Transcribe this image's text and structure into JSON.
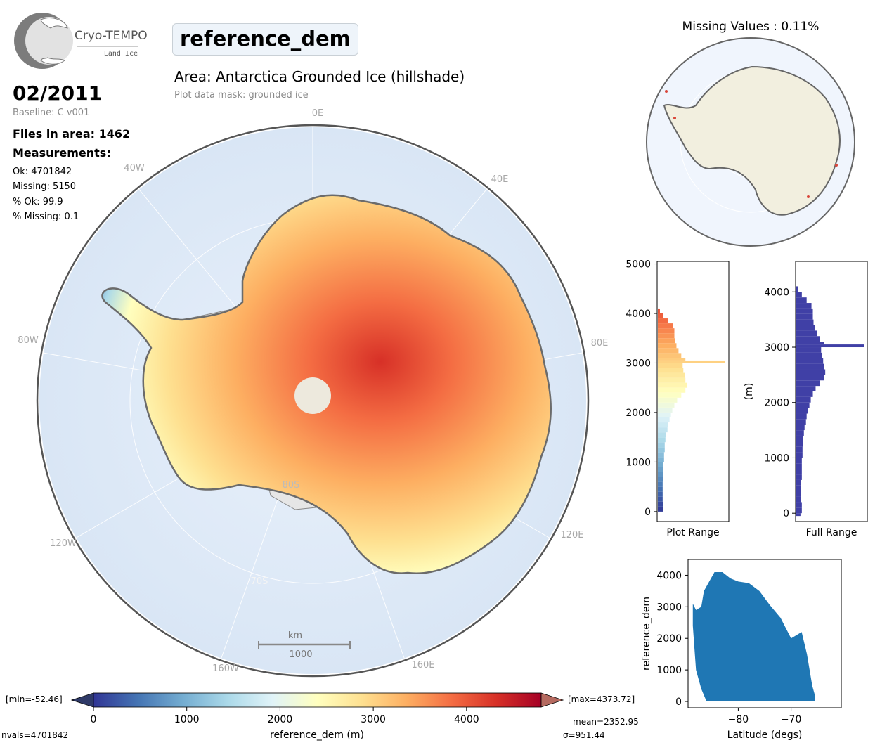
{
  "header": {
    "logo_name": "Cryo-TEMPO",
    "logo_sub": "Land Ice",
    "variable": "reference_dem",
    "area_title": "Area: Antarctica Grounded Ice (hillshade)",
    "mask_note": "Plot data mask: grounded ice"
  },
  "summary": {
    "date": "02/2011",
    "baseline": "Baseline: C v001",
    "files": "Files in area: 1462",
    "measurements_label": "Measurements:",
    "ok": "Ok: 4701842",
    "missing": "Missing: 5150",
    "pct_ok": "% Ok: 99.9",
    "pct_missing": "% Missing: 0.1"
  },
  "map": {
    "lon_labels": [
      "0E",
      "40E",
      "80E",
      "120E",
      "160E",
      "160W",
      "120W",
      "80W",
      "40W"
    ],
    "lat_labels": [
      "80S",
      "70S"
    ],
    "scale_unit": "km",
    "scale_value": "1000"
  },
  "missing_map": {
    "title": "Missing Values : 0.11%"
  },
  "colorbar": {
    "min_label": "[min=-52.46]",
    "max_label": "[max=4373.72]",
    "ticks": [
      "0",
      "1000",
      "2000",
      "3000",
      "4000"
    ],
    "label": "reference_dem (m)",
    "mean": "mean=2352.95",
    "sigma": "σ=951.44",
    "nvals": "nvals=4701842",
    "colors": [
      "#313695",
      "#4575b4",
      "#74add1",
      "#abd9e9",
      "#e0f3f8",
      "#ffffbf",
      "#fee090",
      "#fdae61",
      "#f46d43",
      "#d73027",
      "#a50026"
    ],
    "under_color": "#2f3a68",
    "over_color": "#b56a60"
  },
  "chart_data": [
    {
      "type": "bar",
      "title": "",
      "xlabel": "Plot Range",
      "ylabel": "",
      "orientation": "horizontal",
      "ylim": [
        -200,
        5050
      ],
      "yticks": [
        "0",
        "1000",
        "2000",
        "3000",
        "4000",
        "5000"
      ],
      "bins": [
        [
          0,
          100,
          0.08
        ],
        [
          100,
          200,
          0.08
        ],
        [
          200,
          300,
          0.07
        ],
        [
          300,
          400,
          0.07
        ],
        [
          400,
          500,
          0.07
        ],
        [
          500,
          600,
          0.07
        ],
        [
          600,
          700,
          0.08
        ],
        [
          700,
          800,
          0.08
        ],
        [
          800,
          900,
          0.08
        ],
        [
          900,
          1000,
          0.08
        ],
        [
          1000,
          1100,
          0.09
        ],
        [
          1100,
          1200,
          0.09
        ],
        [
          1200,
          1300,
          0.1
        ],
        [
          1300,
          1400,
          0.1
        ],
        [
          1400,
          1500,
          0.11
        ],
        [
          1500,
          1600,
          0.12
        ],
        [
          1600,
          1700,
          0.14
        ],
        [
          1700,
          1800,
          0.15
        ],
        [
          1800,
          1900,
          0.17
        ],
        [
          1900,
          2000,
          0.19
        ],
        [
          2000,
          2100,
          0.21
        ],
        [
          2100,
          2200,
          0.24
        ],
        [
          2200,
          2300,
          0.28
        ],
        [
          2300,
          2400,
          0.34
        ],
        [
          2400,
          2500,
          0.4
        ],
        [
          2500,
          2600,
          0.42
        ],
        [
          2600,
          2700,
          0.4
        ],
        [
          2700,
          2800,
          0.39
        ],
        [
          2800,
          2900,
          0.37
        ],
        [
          2900,
          3000,
          0.36
        ],
        [
          3000,
          3050,
          0.98
        ],
        [
          3050,
          3100,
          0.4
        ],
        [
          3100,
          3200,
          0.34
        ],
        [
          3200,
          3300,
          0.3
        ],
        [
          3300,
          3400,
          0.27
        ],
        [
          3400,
          3500,
          0.25
        ],
        [
          3500,
          3600,
          0.24
        ],
        [
          3600,
          3700,
          0.24
        ],
        [
          3700,
          3800,
          0.22
        ],
        [
          3800,
          3900,
          0.15
        ],
        [
          3900,
          4000,
          0.08
        ],
        [
          4000,
          4100,
          0.03
        ]
      ]
    },
    {
      "type": "bar",
      "title": "",
      "xlabel": "Full Range",
      "ylabel": "(m)",
      "orientation": "horizontal",
      "ylim": [
        -150,
        4550
      ],
      "yticks": [
        "0",
        "1000",
        "2000",
        "3000",
        "4000"
      ],
      "color": "#4040a6",
      "bins": [
        [
          -50,
          0,
          0.06
        ],
        [
          0,
          100,
          0.08
        ],
        [
          100,
          200,
          0.08
        ],
        [
          200,
          300,
          0.07
        ],
        [
          300,
          400,
          0.07
        ],
        [
          400,
          500,
          0.07
        ],
        [
          500,
          600,
          0.07
        ],
        [
          600,
          700,
          0.08
        ],
        [
          700,
          800,
          0.08
        ],
        [
          800,
          900,
          0.08
        ],
        [
          900,
          1000,
          0.08
        ],
        [
          1000,
          1100,
          0.09
        ],
        [
          1100,
          1200,
          0.09
        ],
        [
          1200,
          1300,
          0.1
        ],
        [
          1300,
          1400,
          0.1
        ],
        [
          1400,
          1500,
          0.11
        ],
        [
          1500,
          1600,
          0.12
        ],
        [
          1600,
          1700,
          0.14
        ],
        [
          1700,
          1800,
          0.15
        ],
        [
          1800,
          1900,
          0.17
        ],
        [
          1900,
          2000,
          0.19
        ],
        [
          2000,
          2100,
          0.21
        ],
        [
          2100,
          2200,
          0.24
        ],
        [
          2200,
          2300,
          0.28
        ],
        [
          2300,
          2400,
          0.34
        ],
        [
          2400,
          2500,
          0.4
        ],
        [
          2500,
          2600,
          0.42
        ],
        [
          2600,
          2700,
          0.4
        ],
        [
          2700,
          2800,
          0.39
        ],
        [
          2800,
          2900,
          0.37
        ],
        [
          2900,
          3000,
          0.36
        ],
        [
          3000,
          3050,
          0.98
        ],
        [
          3050,
          3100,
          0.4
        ],
        [
          3100,
          3200,
          0.34
        ],
        [
          3200,
          3300,
          0.3
        ],
        [
          3300,
          3400,
          0.27
        ],
        [
          3400,
          3500,
          0.25
        ],
        [
          3500,
          3600,
          0.24
        ],
        [
          3600,
          3700,
          0.24
        ],
        [
          3700,
          3800,
          0.22
        ],
        [
          3800,
          3900,
          0.15
        ],
        [
          3900,
          4000,
          0.08
        ],
        [
          4000,
          4100,
          0.03
        ]
      ]
    },
    {
      "type": "scatter",
      "title": "",
      "xlabel": "Latitude (degs)",
      "ylabel": "reference_dem",
      "xlim": [
        -89.5,
        -60.5
      ],
      "ylim": [
        -200,
        4500
      ],
      "xticks": [
        "−80",
        "−70"
      ],
      "yticks": [
        "0",
        "1000",
        "2000",
        "3000",
        "4000"
      ],
      "color": "#1f77b4",
      "upper_envelope": [
        [
          -88.6,
          3100
        ],
        [
          -88,
          2900
        ],
        [
          -87,
          3000
        ],
        [
          -86.5,
          3500
        ],
        [
          -85.5,
          3800
        ],
        [
          -84.5,
          4100
        ],
        [
          -83,
          4100
        ],
        [
          -81.5,
          3900
        ],
        [
          -80,
          3800
        ],
        [
          -78,
          3750
        ],
        [
          -76,
          3500
        ],
        [
          -74,
          3050
        ],
        [
          -72,
          2650
        ],
        [
          -70,
          2000
        ],
        [
          -68,
          2200
        ],
        [
          -67,
          1500
        ],
        [
          -66,
          500
        ],
        [
          -65.5,
          200
        ]
      ],
      "lower_envelope": [
        [
          -88.6,
          2400
        ],
        [
          -88,
          1000
        ],
        [
          -87,
          400
        ],
        [
          -86,
          0
        ],
        [
          -65.5,
          0
        ]
      ]
    }
  ]
}
